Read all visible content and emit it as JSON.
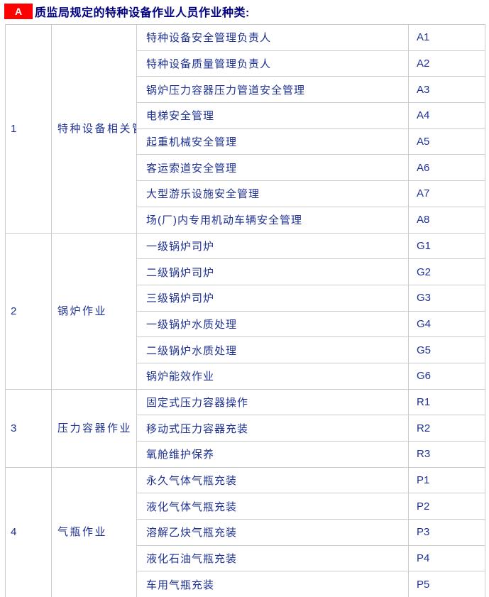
{
  "header": {
    "badge": "A",
    "title": "质监局规定的特种设备作业人员作业种类:"
  },
  "colors": {
    "badge_bg": "#ff0000",
    "badge_text": "#ffffff",
    "title_color": "#000080",
    "cell_text": "#1e3092",
    "border": "#cccccc",
    "page_bg": "#ffffff"
  },
  "table": {
    "groups": [
      {
        "index": "1",
        "category": "特种设备相关管理",
        "items": [
          {
            "name": "特种设备安全管理负责人",
            "code": "A1"
          },
          {
            "name": "特种设备质量管理负责人",
            "code": "A2"
          },
          {
            "name": "锅炉压力容器压力管道安全管理",
            "code": "A3"
          },
          {
            "name": "电梯安全管理",
            "code": "A4"
          },
          {
            "name": "起重机械安全管理",
            "code": "A5"
          },
          {
            "name": "客运索道安全管理",
            "code": "A6"
          },
          {
            "name": "大型游乐设施安全管理",
            "code": "A7"
          },
          {
            "name": "场(厂)内专用机动车辆安全管理",
            "code": "A8"
          }
        ]
      },
      {
        "index": "2",
        "category": "锅炉作业",
        "items": [
          {
            "name": "一级锅炉司炉",
            "code": "G1"
          },
          {
            "name": "二级锅炉司炉",
            "code": "G2"
          },
          {
            "name": "三级锅炉司炉",
            "code": "G3"
          },
          {
            "name": "一级锅炉水质处理",
            "code": "G4"
          },
          {
            "name": "二级锅炉水质处理",
            "code": "G5"
          },
          {
            "name": "锅炉能效作业",
            "code": "G6"
          }
        ]
      },
      {
        "index": "3",
        "category": "压力容器作业",
        "items": [
          {
            "name": "固定式压力容器操作",
            "code": "R1"
          },
          {
            "name": "移动式压力容器充装",
            "code": "R2"
          },
          {
            "name": "氧舱维护保养",
            "code": "R3"
          }
        ]
      },
      {
        "index": "4",
        "category": "气瓶作业",
        "items": [
          {
            "name": "永久气体气瓶充装",
            "code": "P1"
          },
          {
            "name": "液化气体气瓶充装",
            "code": "P2"
          },
          {
            "name": "溶解乙炔气瓶充装",
            "code": "P3"
          },
          {
            "name": "液化石油气瓶充装",
            "code": "P4"
          },
          {
            "name": "车用气瓶充装",
            "code": "P5"
          }
        ]
      }
    ]
  }
}
